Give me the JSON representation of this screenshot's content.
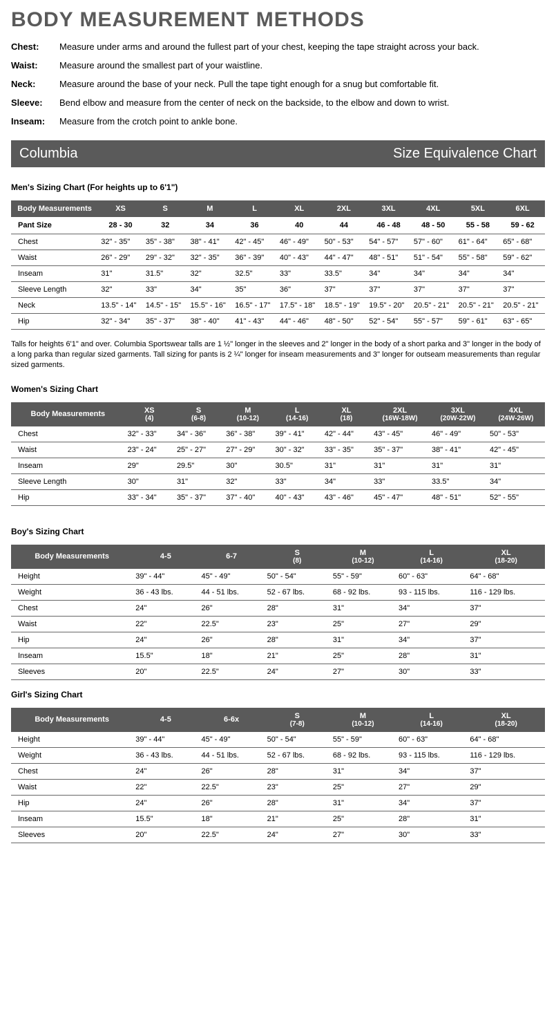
{
  "page_title": "BODY MEASUREMENT METHODS",
  "methods": [
    {
      "label": "Chest:",
      "text": "Measure under arms and around the fullest part of your chest, keeping the tape straight across your back."
    },
    {
      "label": "Waist:",
      "text": "Measure around the smallest part of your waistline."
    },
    {
      "label": "Neck:",
      "text": "Measure around the base of your neck. Pull the tape tight enough for a snug but comfortable fit."
    },
    {
      "label": "Sleeve:",
      "text": "Bend elbow and measure from the center of neck on the backside, to the elbow and down to wrist."
    },
    {
      "label": "Inseam:",
      "text": "Measure from the crotch point to ankle bone."
    }
  ],
  "banner_left": "Columbia",
  "banner_right": "Size Equivalence Chart",
  "mens_title": "Men's Sizing Chart (For heights up to 6'1\")",
  "mens_headers": [
    "Body Measurements",
    "XS",
    "S",
    "M",
    "L",
    "XL",
    "2XL",
    "3XL",
    "4XL",
    "5XL",
    "6XL"
  ],
  "mens_subhead": [
    "Pant Size",
    "28 - 30",
    "32",
    "34",
    "36",
    "40",
    "44",
    "46 - 48",
    "48 - 50",
    "55 - 58",
    "59 - 62"
  ],
  "mens_rows": [
    [
      "Chest",
      "32\" - 35\"",
      "35\" - 38\"",
      "38\" - 41\"",
      "42\" - 45\"",
      "46\" - 49\"",
      "50\" - 53\"",
      "54\" - 57\"",
      "57\" - 60\"",
      "61\" - 64\"",
      "65\" - 68\""
    ],
    [
      "Waist",
      "26\" - 29\"",
      "29\" - 32\"",
      "32\" - 35\"",
      "36\" - 39\"",
      "40\" - 43\"",
      "44\" - 47\"",
      "48\" - 51\"",
      "51\" - 54\"",
      "55\" - 58\"",
      "59\" - 62\""
    ],
    [
      "Inseam",
      "31\"",
      "31.5\"",
      "32\"",
      "32.5\"",
      "33\"",
      "33.5\"",
      "34\"",
      "34\"",
      "34\"",
      "34\""
    ],
    [
      "Sleeve Length",
      "32\"",
      "33\"",
      "34\"",
      "35\"",
      "36\"",
      "37\"",
      "37\"",
      "37\"",
      "37\"",
      "37\""
    ],
    [
      "Neck",
      "13.5\" - 14\"",
      "14.5\" - 15\"",
      "15.5\" - 16\"",
      "16.5\" - 17\"",
      "17.5\" - 18\"",
      "18.5\" - 19\"",
      "19.5\" - 20\"",
      "20.5\" - 21\"",
      "20.5\" - 21\"",
      "20.5\" - 21\""
    ],
    [
      "Hip",
      "32\" - 34\"",
      "35\" - 37\"",
      "38\" - 40\"",
      "41\" - 43\"",
      "44\" - 46\"",
      "48\" - 50\"",
      "52\" - 54\"",
      "55\" - 57\"",
      "59\" - 61\"",
      "63\" - 65\""
    ]
  ],
  "mens_note": "Talls for heights 6'1\" and over. Columbia Sportswear talls are 1 ½\" longer in the sleeves and 2\" longer in the body of a short parka and 3\" longer in the body of a long parka than regular sized garments. Tall sizing for pants is 2 ¼\" longer for inseam measurements and 3\" longer for outseam measurements than regular sized garments.",
  "womens_title": "Women's Sizing Chart",
  "womens_headers": [
    "Body Measurements",
    "XS|(4)",
    "S|(6-8)",
    "M|(10-12)",
    "L|(14-16)",
    "XL|(18)",
    "2XL|(16W-18W)",
    "3XL|(20W-22W)",
    "4XL|(24W-26W)"
  ],
  "womens_rows": [
    [
      "Chest",
      "32\" - 33\"",
      "34\" - 36\"",
      "36\" - 38\"",
      "39\" - 41\"",
      "42\" - 44\"",
      "43\" - 45\"",
      "46\" - 49\"",
      "50\" - 53\""
    ],
    [
      "Waist",
      "23\" - 24\"",
      "25\" - 27\"",
      "27\" - 29\"",
      "30\" - 32\"",
      "33\" - 35\"",
      "35\" - 37\"",
      "38\" - 41\"",
      "42\" - 45\""
    ],
    [
      "Inseam",
      "29\"",
      "29.5\"",
      "30\"",
      "30.5\"",
      "31\"",
      "31\"",
      "31\"",
      "31\""
    ],
    [
      "Sleeve Length",
      "30\"",
      "31\"",
      "32\"",
      "33\"",
      "34\"",
      "33\"",
      "33.5\"",
      "34\""
    ],
    [
      "Hip",
      "33\" - 34\"",
      "35\" - 37\"",
      "37\" - 40\"",
      "40\" - 43\"",
      "43\" - 46\"",
      "45\" - 47\"",
      "48\" - 51\"",
      "52\" - 55\""
    ]
  ],
  "boys_title": "Boy's Sizing Chart",
  "boys_headers": [
    "Body Measurements",
    "4-5",
    "6-7",
    "S|(8)",
    "M|(10-12)",
    "L|(14-16)",
    "XL|(18-20)"
  ],
  "boys_rows": [
    [
      "Height",
      "39\" - 44\"",
      "45\" - 49\"",
      "50\" - 54\"",
      "55\" - 59\"",
      "60\" - 63\"",
      "64\" - 68\""
    ],
    [
      "Weight",
      "36 - 43 lbs.",
      "44 - 51 lbs.",
      "52 - 67 lbs.",
      "68 - 92 lbs.",
      "93 - 115 lbs.",
      "116 - 129 lbs."
    ],
    [
      "Chest",
      "24\"",
      "26\"",
      "28\"",
      "31\"",
      "34\"",
      "37\""
    ],
    [
      "Waist",
      "22\"",
      "22.5\"",
      "23\"",
      "25\"",
      "27\"",
      "29\""
    ],
    [
      "Hip",
      "24\"",
      "26\"",
      "28\"",
      "31\"",
      "34\"",
      "37\""
    ],
    [
      "Inseam",
      "15.5\"",
      "18\"",
      "21\"",
      "25\"",
      "28\"",
      "31\""
    ],
    [
      "Sleeves",
      "20\"",
      "22.5\"",
      "24\"",
      "27\"",
      "30\"",
      "33\""
    ]
  ],
  "girls_title": "Girl's Sizing Chart",
  "girls_headers": [
    "Body Measurements",
    "4-5",
    "6-6x",
    "S|(7-8)",
    "M|(10-12)",
    "L|(14-16)",
    "XL|(18-20)"
  ],
  "girls_rows": [
    [
      "Height",
      "39\" - 44\"",
      "45\" - 49\"",
      "50\" - 54\"",
      "55\" - 59\"",
      "60\" - 63\"",
      "64\" - 68\""
    ],
    [
      "Weight",
      "36 - 43 lbs.",
      "44 - 51 lbs.",
      "52 - 67 lbs.",
      "68 - 92 lbs.",
      "93 - 115 lbs.",
      "116 - 129 lbs."
    ],
    [
      "Chest",
      "24\"",
      "26\"",
      "28\"",
      "31\"",
      "34\"",
      "37\""
    ],
    [
      "Waist",
      "22\"",
      "22.5\"",
      "23\"",
      "25\"",
      "27\"",
      "29\""
    ],
    [
      "Hip",
      "24\"",
      "26\"",
      "28\"",
      "31\"",
      "34\"",
      "37\""
    ],
    [
      "Inseam",
      "15.5\"",
      "18\"",
      "21\"",
      "25\"",
      "28\"",
      "31\""
    ],
    [
      "Sleeves",
      "20\"",
      "22.5\"",
      "24\"",
      "27\"",
      "30\"",
      "33\""
    ]
  ],
  "colors": {
    "header_bg": "#5a5a5a",
    "header_fg": "#ffffff",
    "border": "#666666",
    "title_color": "#5a5a5a"
  }
}
